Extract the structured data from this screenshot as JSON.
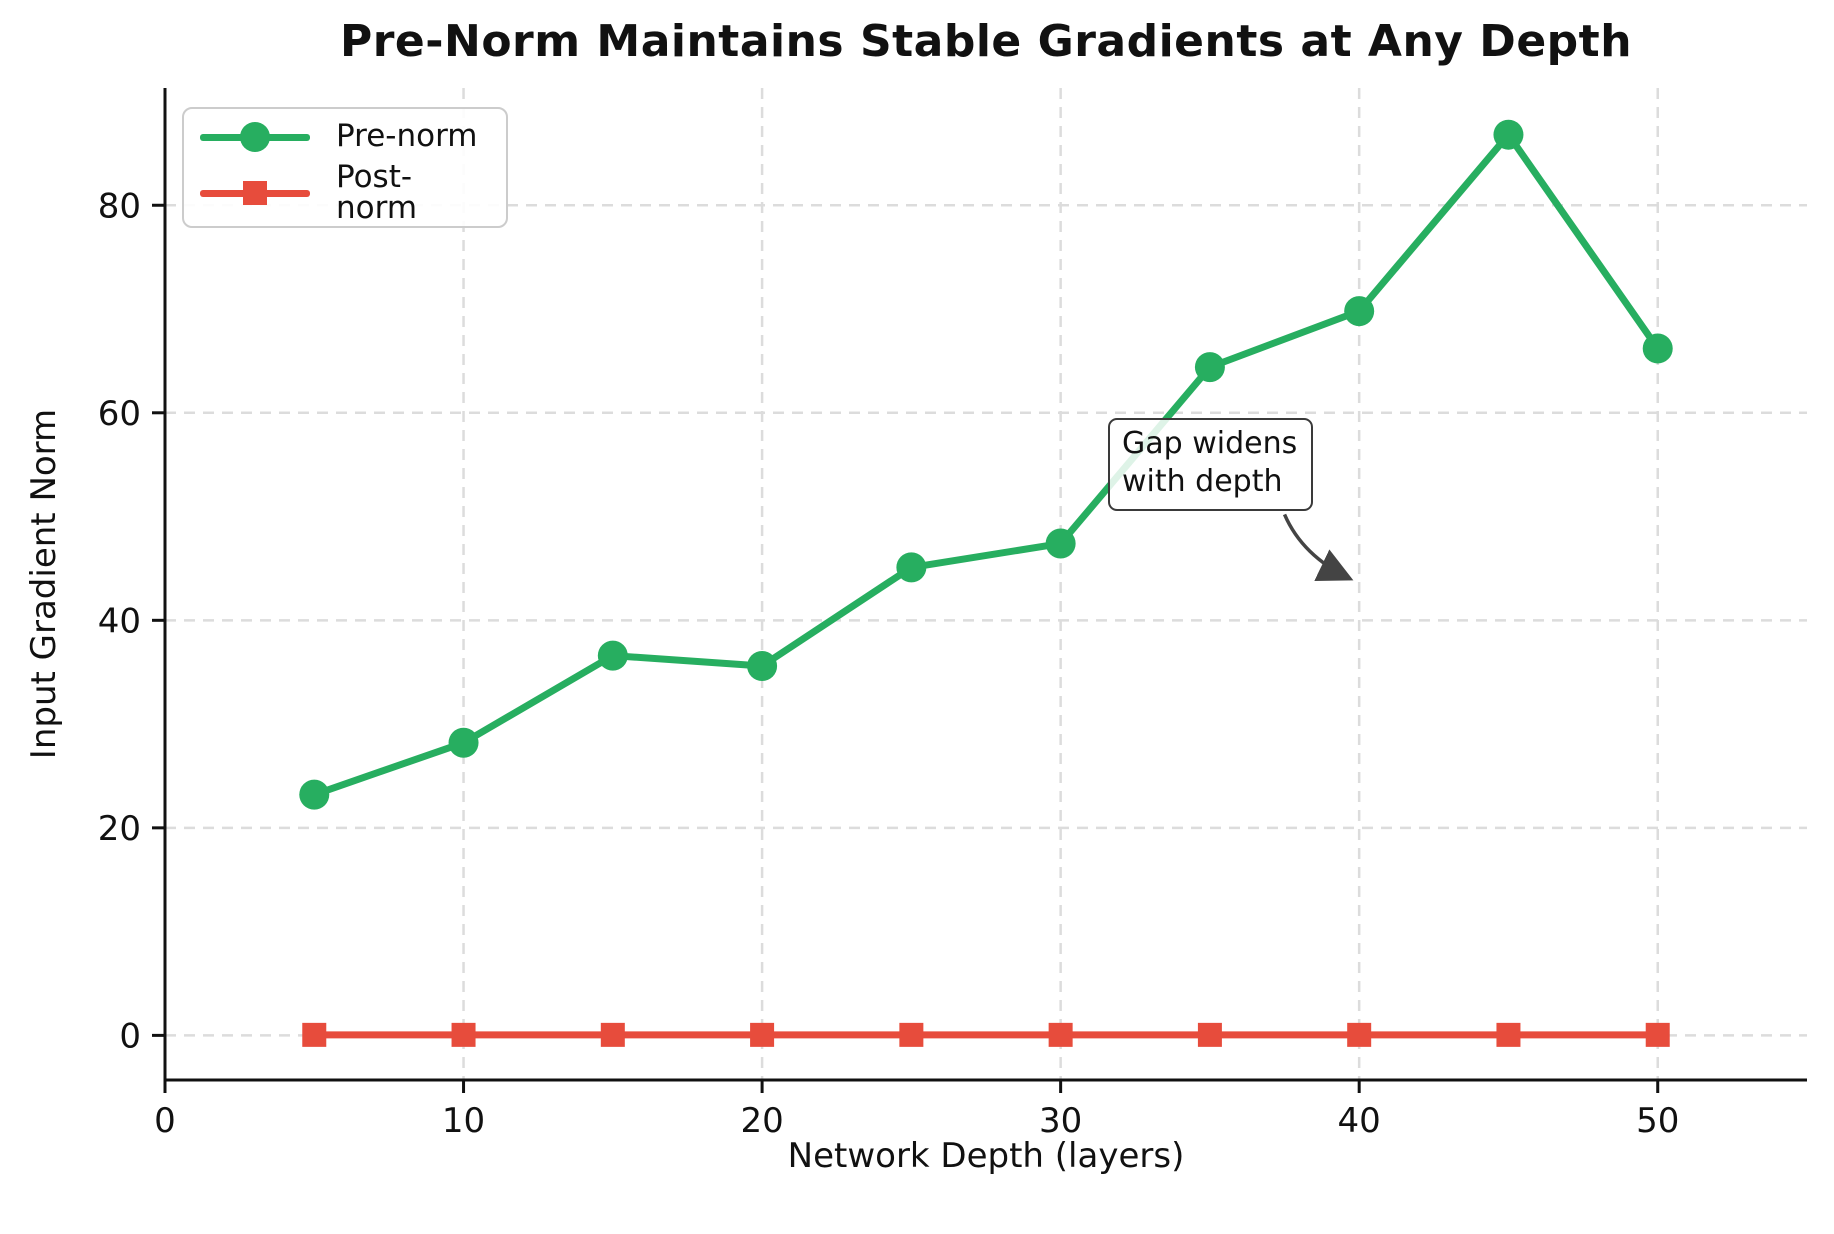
{
  "title": "Pre-Norm Maintains Stable Gradients at Any Depth",
  "colors": {
    "pre_norm": "#27ae60",
    "post_norm": "#e74c3c",
    "grid": "#dcdcdc",
    "text": "#111111",
    "annotation_arrow": "#444444"
  },
  "chart_data": {
    "type": "line",
    "title": "Pre-Norm Maintains Stable Gradients at Any Depth",
    "xlabel": "Network Depth (layers)",
    "ylabel": "Input Gradient Norm",
    "x": [
      5,
      10,
      15,
      20,
      25,
      30,
      35,
      40,
      45,
      50
    ],
    "series": [
      {
        "name": "Pre-norm",
        "marker": "circle",
        "color": "#27ae60",
        "values": [
          23.2,
          28.2,
          36.6,
          35.6,
          45.1,
          47.4,
          64.4,
          69.8,
          86.8,
          66.2
        ]
      },
      {
        "name": "Post-norm",
        "marker": "square",
        "color": "#e74c3c",
        "values": [
          0.05,
          0.05,
          0.05,
          0.05,
          0.05,
          0.05,
          0.05,
          0.05,
          0.05,
          0.05
        ]
      }
    ],
    "xticks": [
      0,
      10,
      20,
      30,
      40,
      50
    ],
    "yticks": [
      0,
      20,
      40,
      60,
      80
    ],
    "xlim": [
      0,
      55
    ],
    "ylim": [
      -4.3,
      91.3
    ],
    "grid": true,
    "legend_position": "upper left",
    "annotation": {
      "lines": [
        "Gap widens",
        "with depth"
      ],
      "arrow_start_x": 37.5,
      "arrow_start_y": 50.2,
      "arrow_ctrl_x": 38.1,
      "arrow_ctrl_y": 46.2,
      "arrow_tip_x": 39.7,
      "arrow_tip_y": 44.0
    }
  }
}
